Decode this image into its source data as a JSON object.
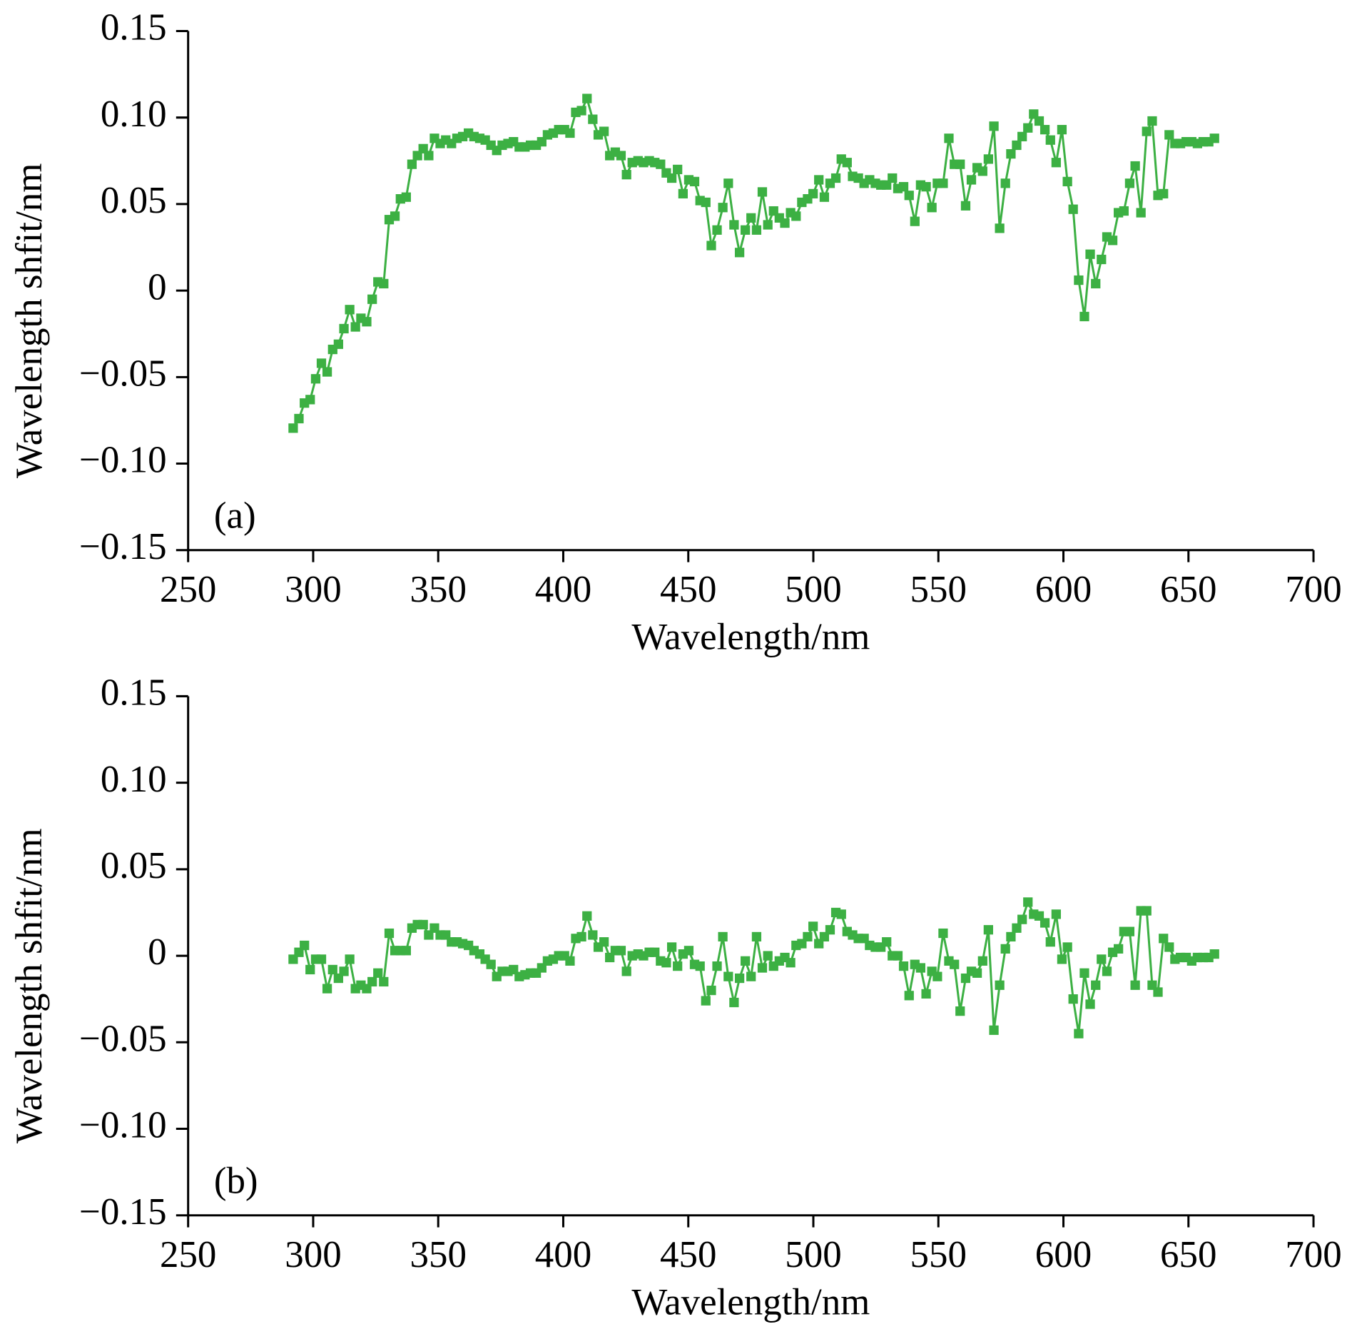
{
  "chart_data": [
    {
      "type": "line",
      "annotation": "(a)",
      "xlabel": "Wavelength/nm",
      "ylabel": "Wavelength shfit/nm",
      "xlim": [
        250,
        700
      ],
      "xticks": [
        250,
        300,
        350,
        400,
        450,
        500,
        550,
        600,
        650,
        700
      ],
      "ylim": [
        -0.15,
        0.15
      ],
      "yticks": [
        {
          "value": -0.15,
          "label": "−0.15"
        },
        {
          "value": -0.1,
          "label": "−0.10"
        },
        {
          "value": -0.05,
          "label": "−0.05"
        },
        0,
        {
          "value": 0.05,
          "label": "0.05"
        },
        {
          "value": 0.1,
          "label": "0.10"
        },
        {
          "value": 0.15,
          "label": "0.15"
        }
      ],
      "x": [
        292.0,
        294.3,
        296.5,
        298.8,
        301.0,
        303.3,
        305.6,
        307.8,
        310.1,
        312.3,
        314.6,
        316.9,
        319.1,
        321.4,
        323.6,
        325.9,
        328.2,
        330.4,
        332.7,
        334.9,
        337.2,
        339.5,
        341.7,
        344.0,
        346.2,
        348.5,
        350.8,
        353.0,
        355.3,
        357.5,
        359.8,
        362.1,
        364.3,
        366.6,
        368.8,
        371.1,
        373.4,
        375.6,
        377.9,
        380.1,
        382.4,
        384.7,
        386.9,
        389.2,
        391.4,
        393.7,
        396.0,
        398.2,
        400.5,
        402.7,
        405.0,
        407.3,
        409.5,
        411.8,
        414.0,
        416.3,
        418.6,
        420.8,
        423.1,
        425.3,
        427.6,
        429.9,
        432.1,
        434.4,
        436.6,
        438.9,
        441.2,
        443.4,
        445.7,
        447.9,
        450.2,
        452.5,
        454.7,
        457.0,
        459.2,
        461.5,
        463.8,
        466.0,
        468.3,
        470.5,
        472.8,
        475.1,
        477.3,
        479.6,
        481.8,
        484.1,
        486.4,
        488.6,
        490.9,
        493.1,
        495.4,
        497.7,
        499.9,
        502.2,
        504.4,
        506.7,
        509.0,
        511.2,
        513.5,
        515.7,
        518.0,
        520.3,
        522.5,
        524.8,
        527.0,
        529.3,
        531.6,
        533.8,
        536.1,
        538.3,
        540.6,
        542.9,
        545.1,
        547.4,
        549.6,
        551.9,
        554.2,
        556.4,
        558.7,
        560.9,
        563.2,
        565.5,
        567.7,
        570.0,
        572.2,
        574.5,
        576.8,
        579.0,
        581.3,
        583.5,
        585.8,
        588.1,
        590.3,
        592.6,
        594.8,
        597.1,
        599.4,
        601.6,
        603.9,
        606.1,
        608.4,
        610.7,
        612.9,
        615.2,
        617.4,
        619.7,
        622.0,
        624.2,
        626.5,
        628.7,
        631.0,
        633.3,
        635.5,
        637.8,
        640.0,
        642.3,
        644.6,
        646.8,
        649.1,
        651.3,
        653.6,
        655.9,
        658.1,
        660.4
      ],
      "series": [
        {
          "color": "#3cb043",
          "values": [
            -0.0795,
            -0.074,
            -0.065,
            -0.063,
            -0.051,
            -0.042,
            -0.047,
            -0.034,
            -0.031,
            -0.022,
            -0.011,
            -0.021,
            -0.016,
            -0.018,
            -0.005,
            0.005,
            0.004,
            0.041,
            0.043,
            0.053,
            0.054,
            0.073,
            0.078,
            0.082,
            0.078,
            0.088,
            0.085,
            0.087,
            0.085,
            0.088,
            0.089,
            0.091,
            0.089,
            0.088,
            0.087,
            0.084,
            0.081,
            0.084,
            0.085,
            0.086,
            0.083,
            0.083,
            0.084,
            0.084,
            0.086,
            0.09,
            0.091,
            0.093,
            0.093,
            0.091,
            0.103,
            0.104,
            0.111,
            0.099,
            0.09,
            0.092,
            0.078,
            0.08,
            0.078,
            0.067,
            0.074,
            0.075,
            0.074,
            0.075,
            0.074,
            0.073,
            0.068,
            0.065,
            0.07,
            0.056,
            0.064,
            0.063,
            0.052,
            0.051,
            0.026,
            0.035,
            0.048,
            0.062,
            0.038,
            0.022,
            0.035,
            0.042,
            0.035,
            0.057,
            0.038,
            0.046,
            0.042,
            0.039,
            0.045,
            0.043,
            0.051,
            0.053,
            0.056,
            0.064,
            0.054,
            0.062,
            0.065,
            0.076,
            0.074,
            0.066,
            0.065,
            0.062,
            0.064,
            0.062,
            0.061,
            0.061,
            0.065,
            0.059,
            0.06,
            0.055,
            0.04,
            0.061,
            0.06,
            0.048,
            0.062,
            0.062,
            0.088,
            0.073,
            0.073,
            0.049,
            0.064,
            0.071,
            0.069,
            0.076,
            0.095,
            0.036,
            0.062,
            0.079,
            0.084,
            0.089,
            0.094,
            0.102,
            0.098,
            0.093,
            0.087,
            0.074,
            0.093,
            0.063,
            0.047,
            0.006,
            -0.015,
            0.021,
            0.004,
            0.018,
            0.031,
            0.029,
            0.045,
            0.046,
            0.062,
            0.072,
            0.045,
            0.092,
            0.098,
            0.055,
            0.056,
            0.09,
            0.085,
            0.085,
            0.086,
            0.086,
            0.085,
            0.086,
            0.086,
            0.088
          ]
        }
      ]
    },
    {
      "type": "line",
      "annotation": "(b)",
      "xlabel": "Wavelength/nm",
      "ylabel": "Wavelength shfit/nm",
      "xlim": [
        250,
        700
      ],
      "xticks": [
        250,
        300,
        350,
        400,
        450,
        500,
        550,
        600,
        650,
        700
      ],
      "ylim": [
        -0.15,
        0.15
      ],
      "yticks": [
        {
          "value": -0.15,
          "label": "−0.15"
        },
        {
          "value": -0.1,
          "label": "−0.10"
        },
        {
          "value": -0.05,
          "label": "−0.05"
        },
        0,
        {
          "value": 0.05,
          "label": "0.05"
        },
        {
          "value": 0.1,
          "label": "0.10"
        },
        {
          "value": 0.15,
          "label": "0.15"
        }
      ],
      "x": [
        292.0,
        294.3,
        296.5,
        298.8,
        301.0,
        303.3,
        305.6,
        307.8,
        310.1,
        312.3,
        314.6,
        316.9,
        319.1,
        321.4,
        323.6,
        325.9,
        328.2,
        330.4,
        332.7,
        334.9,
        337.2,
        339.5,
        341.7,
        344.0,
        346.2,
        348.5,
        350.8,
        353.0,
        355.3,
        357.5,
        359.8,
        362.1,
        364.3,
        366.6,
        368.8,
        371.1,
        373.4,
        375.6,
        377.9,
        380.1,
        382.4,
        384.7,
        386.9,
        389.2,
        391.4,
        393.7,
        396.0,
        398.2,
        400.5,
        402.7,
        405.0,
        407.3,
        409.5,
        411.8,
        414.0,
        416.3,
        418.6,
        420.8,
        423.1,
        425.3,
        427.6,
        429.9,
        432.1,
        434.4,
        436.6,
        438.9,
        441.2,
        443.4,
        445.7,
        447.9,
        450.2,
        452.5,
        454.7,
        457.0,
        459.2,
        461.5,
        463.8,
        466.0,
        468.3,
        470.5,
        472.8,
        475.1,
        477.3,
        479.6,
        481.8,
        484.1,
        486.4,
        488.6,
        490.9,
        493.1,
        495.4,
        497.7,
        499.9,
        502.2,
        504.4,
        506.7,
        509.0,
        511.2,
        513.5,
        515.7,
        518.0,
        520.3,
        522.5,
        524.8,
        527.0,
        529.3,
        531.6,
        533.8,
        536.1,
        538.3,
        540.6,
        542.9,
        545.1,
        547.4,
        549.6,
        551.9,
        554.2,
        556.4,
        558.7,
        560.9,
        563.2,
        565.5,
        567.7,
        570.0,
        572.2,
        574.5,
        576.8,
        579.0,
        581.3,
        583.5,
        585.8,
        588.1,
        590.3,
        592.6,
        594.8,
        597.1,
        599.4,
        601.6,
        603.9,
        606.1,
        608.4,
        610.7,
        612.9,
        615.2,
        617.4,
        619.7,
        622.0,
        624.2,
        626.5,
        628.7,
        631.0,
        633.3,
        635.5,
        637.8,
        640.0,
        642.3,
        644.6,
        646.8,
        649.1,
        651.3,
        653.6,
        655.9,
        658.1,
        660.4
      ],
      "series": [
        {
          "color": "#3cb043",
          "values": [
            -0.002,
            0.002,
            0.006,
            -0.008,
            -0.002,
            -0.002,
            -0.019,
            -0.008,
            -0.013,
            -0.009,
            -0.002,
            -0.019,
            -0.017,
            -0.019,
            -0.015,
            -0.01,
            -0.015,
            0.013,
            0.003,
            0.003,
            0.003,
            0.016,
            0.018,
            0.018,
            0.012,
            0.016,
            0.012,
            0.012,
            0.008,
            0.008,
            0.007,
            0.006,
            0.003,
            0.001,
            -0.002,
            -0.005,
            -0.012,
            -0.009,
            -0.009,
            -0.008,
            -0.012,
            -0.011,
            -0.01,
            -0.01,
            -0.007,
            -0.003,
            -0.002,
            0.0,
            0.0,
            -0.003,
            0.01,
            0.011,
            0.023,
            0.012,
            0.005,
            0.008,
            -0.001,
            0.003,
            0.003,
            -0.009,
            0.0,
            0.001,
            0.0,
            0.002,
            0.002,
            -0.003,
            -0.004,
            0.005,
            -0.006,
            0.001,
            0.003,
            -0.005,
            -0.006,
            -0.026,
            -0.02,
            -0.006,
            0.011,
            -0.012,
            -0.027,
            -0.013,
            -0.003,
            -0.012,
            0.011,
            -0.007,
            0.0,
            -0.006,
            -0.003,
            -0.001,
            -0.004,
            0.006,
            0.007,
            0.011,
            0.017,
            0.007,
            0.011,
            0.015,
            0.025,
            0.024,
            0.014,
            0.012,
            0.01,
            0.01,
            0.006,
            0.005,
            0.005,
            0.008,
            0.0,
            0.0,
            -0.006,
            -0.023,
            -0.005,
            -0.007,
            -0.022,
            -0.009,
            -0.012,
            0.013,
            -0.003,
            -0.005,
            -0.032,
            -0.013,
            -0.009,
            -0.01,
            -0.003,
            0.015,
            -0.043,
            -0.017,
            0.004,
            0.011,
            0.016,
            0.021,
            0.031,
            0.024,
            0.023,
            0.019,
            0.008,
            0.024,
            -0.002,
            0.005,
            -0.025,
            -0.045,
            -0.01,
            -0.028,
            -0.017,
            -0.002,
            -0.009,
            0.002,
            0.004,
            0.014,
            0.014,
            -0.017,
            0.026,
            0.026,
            -0.017,
            -0.021,
            0.01,
            0.005,
            -0.002,
            -0.001,
            -0.001,
            -0.003,
            -0.001,
            -0.001,
            -0.001,
            0.001
          ]
        }
      ]
    }
  ]
}
